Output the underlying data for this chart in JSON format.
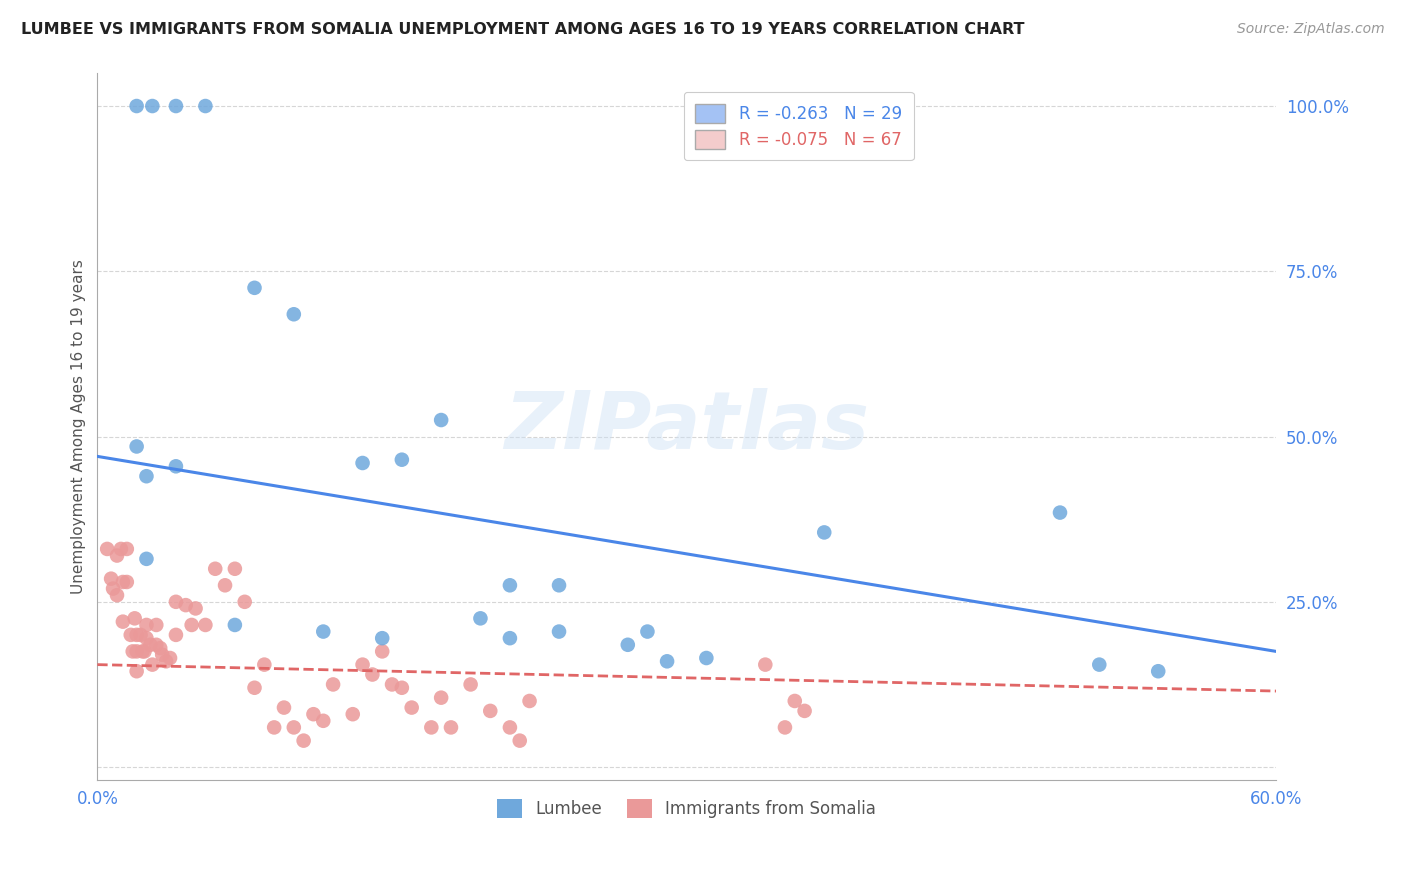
{
  "title": "LUMBEE VS IMMIGRANTS FROM SOMALIA UNEMPLOYMENT AMONG AGES 16 TO 19 YEARS CORRELATION CHART",
  "source": "Source: ZipAtlas.com",
  "ylabel": "Unemployment Among Ages 16 to 19 years",
  "xlim": [
    0.0,
    0.6
  ],
  "ylim": [
    -0.02,
    1.05
  ],
  "yticks": [
    0.0,
    0.25,
    0.5,
    0.75,
    1.0
  ],
  "ytick_labels": [
    "",
    "25.0%",
    "50.0%",
    "75.0%",
    "100.0%"
  ],
  "xtick_positions": [
    0.0,
    0.1,
    0.2,
    0.3,
    0.4,
    0.5,
    0.6
  ],
  "xtick_labels": [
    "0.0%",
    "",
    "",
    "",
    "",
    "",
    "60.0%"
  ],
  "watermark": "ZIPatlas",
  "lumbee_R": -0.263,
  "lumbee_N": 29,
  "somalia_R": -0.075,
  "somalia_N": 67,
  "lumbee_color": "#a4c2f4",
  "somalia_color": "#f4cccc",
  "lumbee_line_color": "#4a86e8",
  "somalia_line_color": "#e06666",
  "lumbee_scatter_color": "#6fa8dc",
  "somalia_scatter_color": "#ea9999",
  "lumbee_x": [
    0.02,
    0.028,
    0.04,
    0.055,
    0.02,
    0.025,
    0.04,
    0.08,
    0.1,
    0.135,
    0.155,
    0.175,
    0.21,
    0.235,
    0.21,
    0.27,
    0.29,
    0.31,
    0.37,
    0.54,
    0.51,
    0.49,
    0.025,
    0.07,
    0.115,
    0.145,
    0.195,
    0.235,
    0.28
  ],
  "lumbee_y": [
    1.0,
    1.0,
    1.0,
    1.0,
    0.485,
    0.44,
    0.455,
    0.725,
    0.685,
    0.46,
    0.465,
    0.525,
    0.275,
    0.275,
    0.195,
    0.185,
    0.16,
    0.165,
    0.355,
    0.145,
    0.155,
    0.385,
    0.315,
    0.215,
    0.205,
    0.195,
    0.225,
    0.205,
    0.205
  ],
  "somalia_x": [
    0.005,
    0.007,
    0.008,
    0.01,
    0.01,
    0.012,
    0.013,
    0.013,
    0.015,
    0.015,
    0.017,
    0.018,
    0.019,
    0.02,
    0.02,
    0.02,
    0.022,
    0.023,
    0.024,
    0.025,
    0.025,
    0.027,
    0.028,
    0.03,
    0.03,
    0.032,
    0.033,
    0.035,
    0.037,
    0.04,
    0.04,
    0.045,
    0.048,
    0.05,
    0.055,
    0.06,
    0.065,
    0.07,
    0.075,
    0.08,
    0.085,
    0.09,
    0.095,
    0.1,
    0.105,
    0.11,
    0.115,
    0.12,
    0.13,
    0.135,
    0.14,
    0.145,
    0.15,
    0.155,
    0.16,
    0.17,
    0.175,
    0.18,
    0.19,
    0.2,
    0.21,
    0.215,
    0.22,
    0.34,
    0.355,
    0.36,
    0.35
  ],
  "somalia_y": [
    0.33,
    0.285,
    0.27,
    0.32,
    0.26,
    0.33,
    0.28,
    0.22,
    0.33,
    0.28,
    0.2,
    0.175,
    0.225,
    0.2,
    0.175,
    0.145,
    0.2,
    0.175,
    0.175,
    0.215,
    0.195,
    0.185,
    0.155,
    0.215,
    0.185,
    0.18,
    0.17,
    0.16,
    0.165,
    0.25,
    0.2,
    0.245,
    0.215,
    0.24,
    0.215,
    0.3,
    0.275,
    0.3,
    0.25,
    0.12,
    0.155,
    0.06,
    0.09,
    0.06,
    0.04,
    0.08,
    0.07,
    0.125,
    0.08,
    0.155,
    0.14,
    0.175,
    0.125,
    0.12,
    0.09,
    0.06,
    0.105,
    0.06,
    0.125,
    0.085,
    0.06,
    0.04,
    0.1,
    0.155,
    0.1,
    0.085,
    0.06
  ],
  "lumbee_line_x0": 0.0,
  "lumbee_line_y0": 0.47,
  "lumbee_line_x1": 0.6,
  "lumbee_line_y1": 0.175,
  "somalia_line_x0": 0.0,
  "somalia_line_y0": 0.155,
  "somalia_line_x1": 0.6,
  "somalia_line_y1": 0.115
}
